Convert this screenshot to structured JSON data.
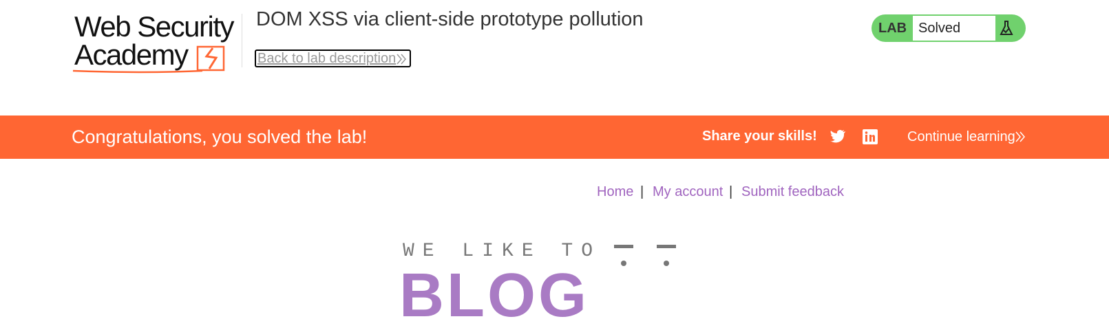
{
  "header": {
    "logo": {
      "line1": "Web Security",
      "line2": "Academy"
    },
    "title": "DOM XSS via client-side prototype pollution",
    "back_link": "Back to lab description",
    "lab_badge": {
      "label": "LAB",
      "status": "Solved"
    }
  },
  "banner": {
    "message": "Congratulations, you solved the lab!",
    "share": "Share your skills!",
    "continue": "Continue learning"
  },
  "nav": {
    "items": [
      "Home",
      "My account",
      "Submit feedback"
    ],
    "separator": "|"
  },
  "blog": {
    "tagline": "WE LIKE TO",
    "heading": "BLOG"
  }
}
